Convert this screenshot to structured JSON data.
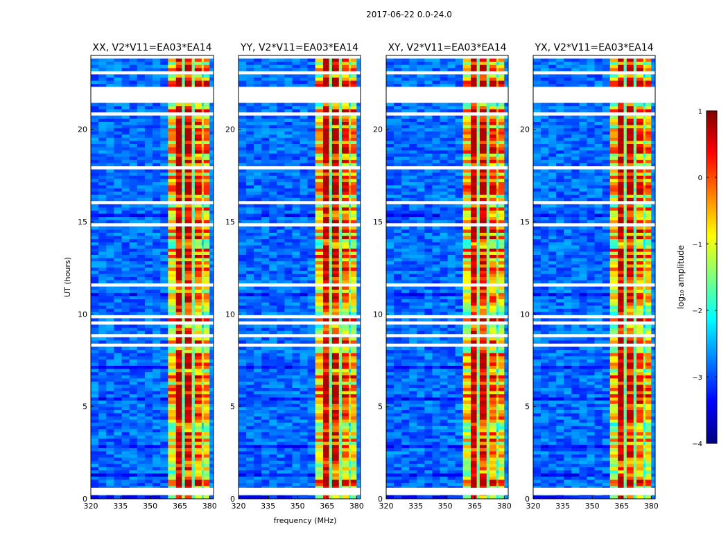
{
  "figure": {
    "suptitle": "2017-06-22 0.0-24.0"
  },
  "chart_data": [
    {
      "type": "heatmap",
      "title": "XX, V2*V11=EA03*EA14",
      "xlabel": "",
      "ylabel": "UT (hours)",
      "xlim": [
        320,
        382
      ],
      "ylim": [
        0,
        24
      ],
      "xticks": [
        320,
        335,
        350,
        365,
        380
      ],
      "yticks": [
        0,
        5,
        10,
        15,
        20
      ],
      "bright_band_mhz": [
        359,
        380
      ],
      "gap_hours": [
        [
          21.5,
          22.3
        ],
        [
          0.2,
          0.6
        ]
      ]
    },
    {
      "type": "heatmap",
      "title": "YY, V2*V11=EA03*EA14",
      "xlabel": "frequency (MHz)",
      "ylabel": "",
      "xlim": [
        320,
        382
      ],
      "ylim": [
        0,
        24
      ],
      "xticks": [
        320,
        335,
        350,
        365,
        380
      ],
      "yticks": [
        0,
        5,
        10,
        15,
        20
      ],
      "bright_band_mhz": [
        359,
        380
      ],
      "gap_hours": [
        [
          21.5,
          22.3
        ],
        [
          0.2,
          0.6
        ]
      ]
    },
    {
      "type": "heatmap",
      "title": "XY, V2*V11=EA03*EA14",
      "xlabel": "",
      "ylabel": "",
      "xlim": [
        320,
        382
      ],
      "ylim": [
        0,
        24
      ],
      "xticks": [
        320,
        335,
        350,
        365,
        380
      ],
      "yticks": [
        0,
        5,
        10,
        15,
        20
      ],
      "bright_band_mhz": [
        359,
        380
      ],
      "gap_hours": [
        [
          21.5,
          22.3
        ],
        [
          0.2,
          0.6
        ]
      ]
    },
    {
      "type": "heatmap",
      "title": "YX, V2*V11=EA03*EA14",
      "xlabel": "",
      "ylabel": "",
      "xlim": [
        320,
        382
      ],
      "ylim": [
        0,
        24
      ],
      "xticks": [
        320,
        335,
        350,
        365,
        380
      ],
      "yticks": [
        0,
        5,
        10,
        15,
        20
      ],
      "bright_band_mhz": [
        359,
        380
      ],
      "gap_hours": [
        [
          21.5,
          22.3
        ],
        [
          0.2,
          0.6
        ]
      ]
    }
  ],
  "colorbar": {
    "label": "log₁₀ amplitude",
    "min": -4,
    "max": 1,
    "ticks": [
      1,
      0,
      -1,
      -2,
      -3,
      -4
    ],
    "tick_labels": [
      "1",
      "0",
      "−1",
      "−2",
      "−3",
      "−4"
    ],
    "colormap": "jet",
    "colors": [
      "#00007f",
      "#0000ff",
      "#007fff",
      "#00ffff",
      "#7fff7f",
      "#ffff00",
      "#ff7f00",
      "#ff0000",
      "#7f0000"
    ]
  }
}
